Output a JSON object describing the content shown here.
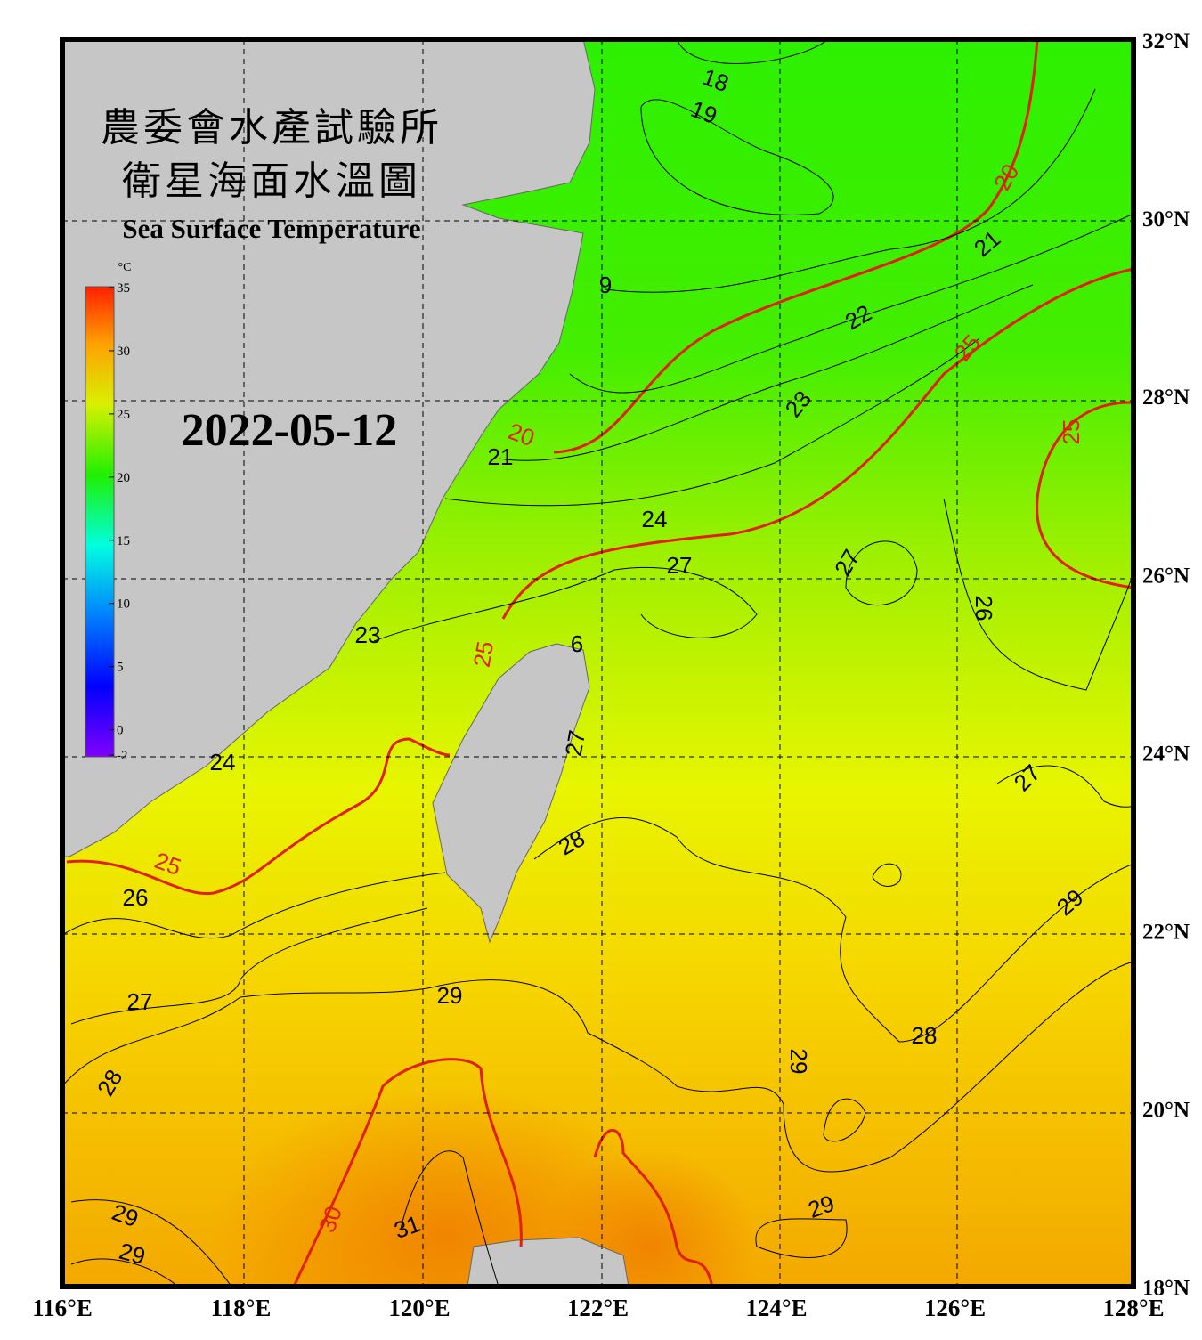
{
  "header": {
    "title_zh_1": "農委會水產試驗所",
    "title_zh_2": "衛星海面水溫圖",
    "title_en": "Sea Surface Temperature"
  },
  "date": "2022-05-12",
  "colorbar": {
    "unit": "°C",
    "ticks": [
      35,
      30,
      25,
      20,
      15,
      10,
      5,
      0,
      -2
    ]
  },
  "x_axis_labels": [
    "116°E",
    "118°E",
    "120°E",
    "122°E",
    "124°E",
    "126°E",
    "128°E"
  ],
  "y_axis_labels": [
    "32°N",
    "30°N",
    "28°N",
    "26°N",
    "24°N",
    "22°N",
    "20°N",
    "18°N"
  ],
  "contour_labels": [
    "18",
    "19",
    "20",
    "21",
    "9",
    "22",
    "25",
    "23",
    "20",
    "25",
    "21",
    "24",
    "27",
    "27",
    "26",
    "23",
    "25",
    "6",
    "27",
    "24",
    "27",
    "25",
    "28",
    "26",
    "29",
    "27",
    "29",
    "28",
    "29",
    "28",
    "30",
    "31",
    "29",
    "29",
    "29"
  ]
}
